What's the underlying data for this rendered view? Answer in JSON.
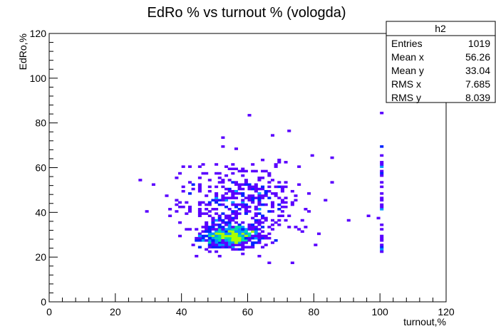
{
  "chart_data": {
    "type": "heatmap",
    "title": "EdRo % vs turnout % (vologda)",
    "xlabel": "turnout,%",
    "ylabel": "EdRo,%",
    "xlim": [
      0,
      120
    ],
    "ylim": [
      0,
      120
    ],
    "xticks": [
      "0",
      "20",
      "40",
      "60",
      "80",
      "100",
      "120"
    ],
    "yticks": [
      "0",
      "20",
      "40",
      "60",
      "80",
      "100",
      "120"
    ],
    "bin_size": 1,
    "grid": false,
    "colors": {
      "low": "#5a00ff",
      "mid_low": "#0022ff",
      "mid": "#0099ff",
      "mid_high": "#00ddaa",
      "high": "#aaff00"
    },
    "stats_box": {
      "name": "h2",
      "rows": [
        {
          "label": "Entries",
          "value": "1019"
        },
        {
          "label": "Mean x",
          "value": "56.26"
        },
        {
          "label": "Mean y",
          "value": "33.04"
        },
        {
          "label": "RMS x",
          "value": "7.685"
        },
        {
          "label": "RMS y",
          "value": "8.039"
        }
      ]
    }
  }
}
